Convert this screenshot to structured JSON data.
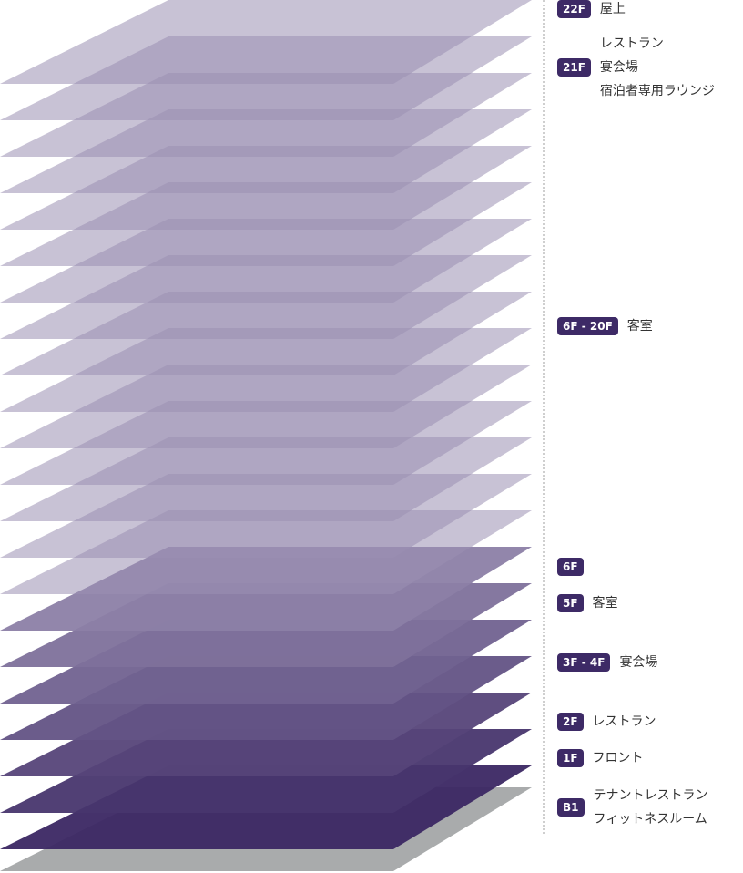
{
  "colors": {
    "deep": "#3b2763",
    "light": "#b5adc9",
    "ground": "#a9abac",
    "badge": "#3d2a66"
  },
  "slab_count": 22,
  "floors": [
    {
      "badge": "22F",
      "lines": [
        "屋上"
      ]
    },
    {
      "badge": "21F",
      "lines": [
        "レストラン",
        "宴会場",
        "宿泊者専用ラウンジ"
      ]
    },
    {
      "badge": "6F - 20F",
      "lines": [
        "客室"
      ]
    },
    {
      "badge": "6F",
      "lines": []
    },
    {
      "badge": "5F",
      "lines": [
        "客室"
      ]
    },
    {
      "badge": "3F - 4F",
      "lines": [
        "宴会場"
      ]
    },
    {
      "badge": "2F",
      "lines": [
        "レストラン"
      ]
    },
    {
      "badge": "1F",
      "lines": [
        "フロント"
      ]
    },
    {
      "badge": "B1",
      "lines": [
        "テナントレストラン",
        "フィットネスルーム"
      ]
    }
  ]
}
